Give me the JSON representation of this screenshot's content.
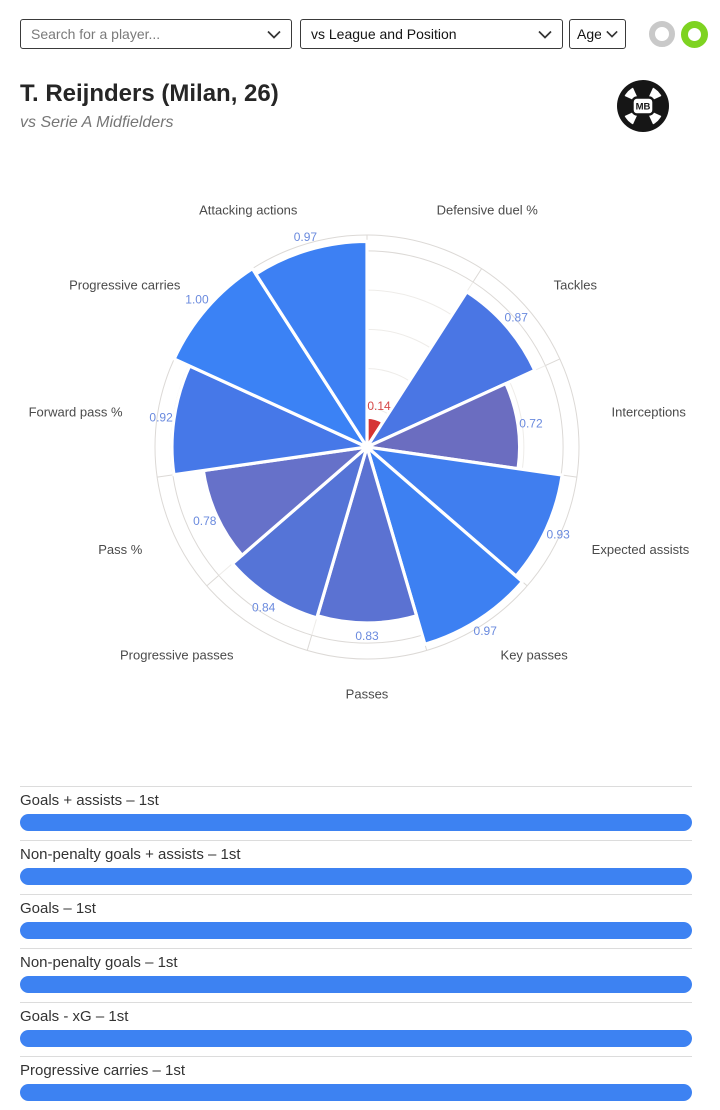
{
  "topbar": {
    "player_select": {
      "value": "Search for a player..."
    },
    "comparison_select": {
      "value": "vs League and Position"
    },
    "age_select": {
      "value": "Age"
    },
    "toggles": {
      "inactive_color": "#c9c9c9",
      "active_color": "#7ed321"
    }
  },
  "header": {
    "title": "T. Reijnders (Milan, 26)",
    "subtitle": "vs Serie A Midfielders",
    "logo_text": "MB"
  },
  "chart_data": {
    "type": "pizza-polar-bar",
    "start": "top",
    "direction": "clockwise",
    "scale": [
      0,
      1
    ],
    "grid": true,
    "grid_color": "#eeece9",
    "outer_ring_color": "#dcd9d6",
    "label_color": "#4a4a4a",
    "default_value_color": "#6a8ade",
    "slices": [
      {
        "label": "Defensive duel %",
        "value": 0.14,
        "color": "#d63434",
        "value_color": "#d64848"
      },
      {
        "label": "Tackles",
        "value": 0.87,
        "color": "#4a76e4"
      },
      {
        "label": "Interceptions",
        "value": 0.72,
        "color": "#6b6dc0"
      },
      {
        "label": "Expected assists",
        "value": 0.93,
        "color": "#407eef"
      },
      {
        "label": "Key passes",
        "value": 0.97,
        "color": "#3d80f2"
      },
      {
        "label": "Passes",
        "value": 0.83,
        "color": "#5b72d2"
      },
      {
        "label": "Progressive passes",
        "value": 0.84,
        "color": "#5574d7"
      },
      {
        "label": "Pass %",
        "value": 0.78,
        "color": "#6671c9"
      },
      {
        "label": "Forward pass %",
        "value": 0.92,
        "color": "#4678e8"
      },
      {
        "label": "Progressive carries",
        "value": 1.0,
        "color": "#3b82f5"
      },
      {
        "label": "Attacking actions",
        "value": 0.97,
        "color": "#3d80f3"
      }
    ]
  },
  "bars": {
    "fill_color": "#3d82f2",
    "items": [
      {
        "label": "Goals + assists – 1st",
        "fill": 1
      },
      {
        "label": "Non-penalty goals + assists – 1st",
        "fill": 1
      },
      {
        "label": "Goals – 1st",
        "fill": 1
      },
      {
        "label": "Non-penalty goals – 1st",
        "fill": 1
      },
      {
        "label": "Goals - xG – 1st",
        "fill": 1
      },
      {
        "label": "Progressive carries – 1st",
        "fill": 1
      }
    ]
  }
}
